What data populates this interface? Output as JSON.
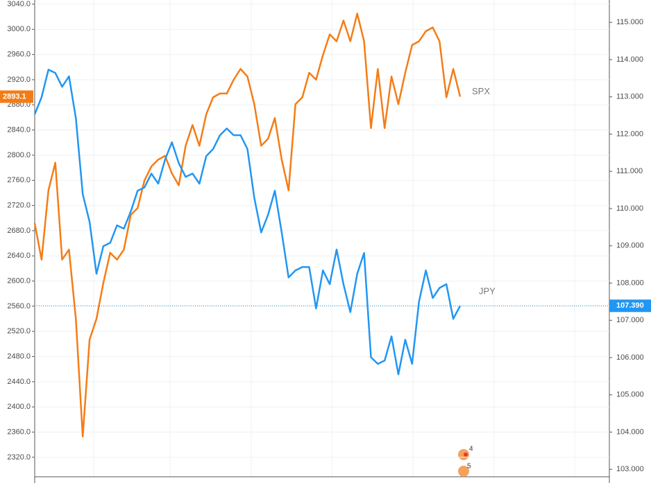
{
  "chart_data": {
    "type": "line",
    "categories": [
      null,
      null,
      null,
      null,
      null,
      null,
      null,
      null,
      null,
      null,
      null,
      null,
      null,
      null,
      null,
      null,
      null,
      null,
      null,
      null,
      null,
      null,
      null,
      null,
      null,
      null,
      null,
      null,
      null,
      null,
      null,
      null,
      null,
      null,
      null,
      null,
      null,
      null,
      null,
      null,
      null,
      null,
      null,
      null,
      null,
      null,
      null,
      null,
      null,
      null,
      null,
      null,
      null,
      null,
      null,
      null,
      null,
      null,
      null,
      null,
      null,
      null,
      null
    ],
    "series": [
      {
        "name": "SPX",
        "color": "#f57c15",
        "last_label": "2893.1",
        "values": [
          2692,
          2634,
          2744,
          2788,
          2634,
          2650,
          2540,
          2353,
          2507,
          2540,
          2597,
          2645,
          2634,
          2650,
          2705,
          2716,
          2760,
          2782,
          2793,
          2799,
          2771,
          2752,
          2815,
          2848,
          2815,
          2865,
          2892,
          2898,
          2898,
          2920,
          2937,
          2925,
          2881,
          2815,
          2826,
          2859,
          2793,
          2744,
          2881,
          2892,
          2931,
          2920,
          2959,
          2992,
          2981,
          3014,
          2981,
          3025,
          2981,
          2843,
          2937,
          2843,
          2925,
          2881,
          2931,
          2975,
          2981,
          2997,
          3003,
          2981,
          2892,
          2937,
          2893
        ]
      },
      {
        "name": "JPY",
        "color": "#2196f3",
        "axis": "y2",
        "last_label": "107.390",
        "values": [
          112.53,
          112.99,
          113.73,
          113.64,
          113.27,
          113.55,
          112.43,
          110.39,
          109.64,
          108.25,
          108.99,
          109.08,
          109.55,
          109.46,
          109.92,
          110.48,
          110.57,
          110.94,
          110.67,
          111.32,
          111.78,
          111.22,
          110.85,
          110.94,
          110.67,
          111.41,
          111.6,
          111.97,
          112.15,
          111.97,
          111.97,
          111.6,
          110.29,
          109.36,
          109.83,
          110.48,
          109.36,
          108.15,
          108.34,
          108.43,
          108.43,
          107.32,
          108.34,
          107.97,
          108.9,
          107.97,
          107.22,
          108.25,
          108.81,
          106.01,
          105.83,
          105.92,
          106.57,
          105.55,
          106.48,
          105.83,
          107.5,
          108.34,
          107.6,
          107.87,
          107.97,
          107.04,
          107.39
        ]
      }
    ],
    "ylim": [
      2289,
      3046.6
    ],
    "yticks": [
      {
        "value": 3040,
        "label": "3040.0"
      },
      {
        "value": 3000,
        "label": "3000.0"
      },
      {
        "value": 2960,
        "label": "2960.0"
      },
      {
        "value": 2920,
        "label": "2920.0"
      },
      {
        "value": 2880,
        "label": "2880.0"
      },
      {
        "value": 2840,
        "label": "2840.0"
      },
      {
        "value": 2800,
        "label": "2800.0"
      },
      {
        "value": 2760,
        "label": "2760.0"
      },
      {
        "value": 2720,
        "label": "2720.0"
      },
      {
        "value": 2680,
        "label": "2680.0"
      },
      {
        "value": 2640,
        "label": "2640.0"
      },
      {
        "value": 2600,
        "label": "2600.0"
      },
      {
        "value": 2560,
        "label": "2560.0"
      },
      {
        "value": 2520,
        "label": "2520.0"
      },
      {
        "value": 2480,
        "label": "2480.0"
      },
      {
        "value": 2440,
        "label": "2440.0"
      },
      {
        "value": 2400,
        "label": "2400.0"
      },
      {
        "value": 2360,
        "label": "2360.0"
      },
      {
        "value": 2320,
        "label": "2320.0"
      }
    ],
    "y2lim": [
      102.8,
      115.6
    ],
    "y2ticks": [
      {
        "value": 115,
        "label": "115.000"
      },
      {
        "value": 114,
        "label": "114.000"
      },
      {
        "value": 113,
        "label": "113.000"
      },
      {
        "value": 112,
        "label": "112.000"
      },
      {
        "value": 111,
        "label": "111.000"
      },
      {
        "value": 110,
        "label": "110.000"
      },
      {
        "value": 109,
        "label": "109.000"
      },
      {
        "value": 108,
        "label": "108.000"
      },
      {
        "value": 107,
        "label": "107.000"
      },
      {
        "value": 106,
        "label": "106.000"
      },
      {
        "value": 105,
        "label": "105.000"
      },
      {
        "value": 104,
        "label": "104.000"
      },
      {
        "value": 103,
        "label": "103.000"
      }
    ],
    "grid": true,
    "event_badges": [
      "4",
      "5"
    ]
  }
}
